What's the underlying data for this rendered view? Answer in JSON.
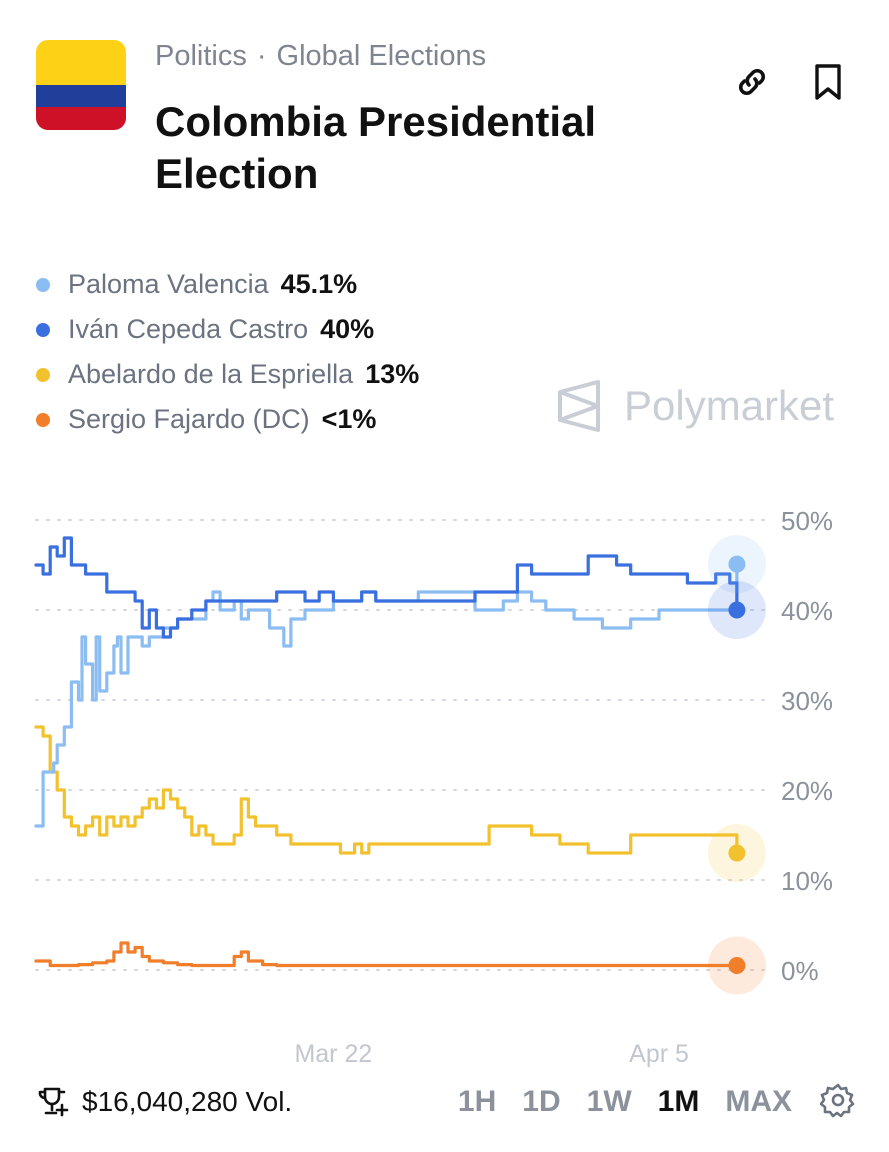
{
  "header": {
    "category": "Politics",
    "subcategory": "Global Elections",
    "separator": "·",
    "title": "Colombia Presidential Election",
    "flag_colors": [
      "#FCD116",
      "#1F3F9A",
      "#CE1126"
    ]
  },
  "brand": "Polymarket",
  "volume": "$16,040,280 Vol.",
  "ranges": [
    "1H",
    "1D",
    "1W",
    "1M",
    "MAX"
  ],
  "active_range": "1M",
  "chart_data": {
    "type": "line",
    "title": "",
    "xlabel": "",
    "ylabel": "",
    "ylim": [
      0,
      50
    ],
    "yticks": [
      0,
      10,
      20,
      30,
      40,
      50
    ],
    "ytick_labels": [
      "0%",
      "10%",
      "20%",
      "30%",
      "40%",
      "50%"
    ],
    "xticks": [
      {
        "label": "Mar 22",
        "t": 0.42
      },
      {
        "label": "Apr 5",
        "t": 0.88
      }
    ],
    "grid": true,
    "series": [
      {
        "name": "Paloma Valencia",
        "label": "45.1%",
        "color": "#8BBDF2",
        "final": 45.1,
        "points": [
          [
            0,
            16
          ],
          [
            0.01,
            22
          ],
          [
            0.02,
            22
          ],
          [
            0.025,
            23
          ],
          [
            0.03,
            25
          ],
          [
            0.04,
            27
          ],
          [
            0.05,
            32
          ],
          [
            0.06,
            30
          ],
          [
            0.065,
            37
          ],
          [
            0.07,
            34
          ],
          [
            0.08,
            30
          ],
          [
            0.085,
            37
          ],
          [
            0.09,
            31
          ],
          [
            0.1,
            33
          ],
          [
            0.11,
            36
          ],
          [
            0.115,
            37
          ],
          [
            0.12,
            33
          ],
          [
            0.13,
            37
          ],
          [
            0.14,
            37
          ],
          [
            0.15,
            36
          ],
          [
            0.16,
            37
          ],
          [
            0.17,
            37
          ],
          [
            0.18,
            38
          ],
          [
            0.2,
            39
          ],
          [
            0.22,
            39
          ],
          [
            0.24,
            41
          ],
          [
            0.25,
            42
          ],
          [
            0.26,
            40
          ],
          [
            0.28,
            41
          ],
          [
            0.29,
            39
          ],
          [
            0.3,
            40
          ],
          [
            0.33,
            38
          ],
          [
            0.35,
            36
          ],
          [
            0.36,
            39
          ],
          [
            0.38,
            40
          ],
          [
            0.4,
            40
          ],
          [
            0.42,
            41
          ],
          [
            0.44,
            41
          ],
          [
            0.46,
            42
          ],
          [
            0.48,
            41
          ],
          [
            0.5,
            41
          ],
          [
            0.52,
            41
          ],
          [
            0.54,
            42
          ],
          [
            0.56,
            42
          ],
          [
            0.58,
            42
          ],
          [
            0.6,
            42
          ],
          [
            0.62,
            40
          ],
          [
            0.64,
            40
          ],
          [
            0.66,
            41
          ],
          [
            0.68,
            42
          ],
          [
            0.7,
            41
          ],
          [
            0.72,
            40
          ],
          [
            0.74,
            40
          ],
          [
            0.76,
            39
          ],
          [
            0.78,
            39
          ],
          [
            0.8,
            38
          ],
          [
            0.82,
            38
          ],
          [
            0.84,
            39
          ],
          [
            0.86,
            39
          ],
          [
            0.88,
            40
          ],
          [
            0.9,
            40
          ],
          [
            0.92,
            40
          ],
          [
            0.94,
            40
          ],
          [
            0.96,
            40
          ],
          [
            0.98,
            40
          ],
          [
            0.99,
            45.1
          ]
        ]
      },
      {
        "name": "Iván Cepeda Castro",
        "label": "40%",
        "color": "#3A6FE0",
        "final": 40,
        "points": [
          [
            0,
            45
          ],
          [
            0.01,
            44
          ],
          [
            0.02,
            47
          ],
          [
            0.03,
            46
          ],
          [
            0.04,
            48
          ],
          [
            0.05,
            45
          ],
          [
            0.06,
            45
          ],
          [
            0.07,
            44
          ],
          [
            0.08,
            44
          ],
          [
            0.09,
            44
          ],
          [
            0.1,
            42
          ],
          [
            0.12,
            42
          ],
          [
            0.14,
            41
          ],
          [
            0.15,
            38
          ],
          [
            0.16,
            40
          ],
          [
            0.17,
            38
          ],
          [
            0.18,
            37
          ],
          [
            0.19,
            38
          ],
          [
            0.2,
            39
          ],
          [
            0.22,
            40
          ],
          [
            0.24,
            41
          ],
          [
            0.26,
            41
          ],
          [
            0.28,
            41
          ],
          [
            0.3,
            41
          ],
          [
            0.32,
            41
          ],
          [
            0.34,
            42
          ],
          [
            0.36,
            42
          ],
          [
            0.38,
            41
          ],
          [
            0.4,
            42
          ],
          [
            0.42,
            41
          ],
          [
            0.44,
            41
          ],
          [
            0.46,
            42
          ],
          [
            0.48,
            41
          ],
          [
            0.5,
            41
          ],
          [
            0.52,
            41
          ],
          [
            0.54,
            41
          ],
          [
            0.56,
            41
          ],
          [
            0.58,
            41
          ],
          [
            0.6,
            41
          ],
          [
            0.62,
            42
          ],
          [
            0.64,
            42
          ],
          [
            0.66,
            42
          ],
          [
            0.68,
            45
          ],
          [
            0.7,
            44
          ],
          [
            0.72,
            44
          ],
          [
            0.74,
            44
          ],
          [
            0.76,
            44
          ],
          [
            0.78,
            46
          ],
          [
            0.8,
            46
          ],
          [
            0.82,
            45
          ],
          [
            0.84,
            44
          ],
          [
            0.86,
            44
          ],
          [
            0.88,
            44
          ],
          [
            0.9,
            44
          ],
          [
            0.92,
            43
          ],
          [
            0.94,
            43
          ],
          [
            0.96,
            44
          ],
          [
            0.98,
            43
          ],
          [
            0.99,
            40
          ]
        ]
      },
      {
        "name": "Abelardo de la Espriella",
        "label": "13%",
        "color": "#F2C12E",
        "final": 13,
        "points": [
          [
            0,
            27
          ],
          [
            0.01,
            26
          ],
          [
            0.02,
            22
          ],
          [
            0.03,
            20
          ],
          [
            0.04,
            17
          ],
          [
            0.05,
            16
          ],
          [
            0.06,
            15
          ],
          [
            0.07,
            16
          ],
          [
            0.08,
            17
          ],
          [
            0.09,
            15
          ],
          [
            0.1,
            17
          ],
          [
            0.11,
            16
          ],
          [
            0.12,
            17
          ],
          [
            0.13,
            16
          ],
          [
            0.14,
            17
          ],
          [
            0.15,
            18
          ],
          [
            0.16,
            19
          ],
          [
            0.17,
            18
          ],
          [
            0.18,
            20
          ],
          [
            0.19,
            19
          ],
          [
            0.2,
            18
          ],
          [
            0.21,
            17
          ],
          [
            0.22,
            15
          ],
          [
            0.23,
            16
          ],
          [
            0.24,
            15
          ],
          [
            0.25,
            14
          ],
          [
            0.26,
            14
          ],
          [
            0.27,
            14
          ],
          [
            0.28,
            15
          ],
          [
            0.29,
            19
          ],
          [
            0.3,
            17
          ],
          [
            0.31,
            16
          ],
          [
            0.32,
            16
          ],
          [
            0.33,
            16
          ],
          [
            0.34,
            15
          ],
          [
            0.35,
            15
          ],
          [
            0.36,
            14
          ],
          [
            0.37,
            14
          ],
          [
            0.38,
            14
          ],
          [
            0.39,
            14
          ],
          [
            0.4,
            14
          ],
          [
            0.41,
            14
          ],
          [
            0.42,
            14
          ],
          [
            0.43,
            13
          ],
          [
            0.44,
            13
          ],
          [
            0.45,
            14
          ],
          [
            0.46,
            13
          ],
          [
            0.47,
            14
          ],
          [
            0.48,
            14
          ],
          [
            0.5,
            14
          ],
          [
            0.52,
            14
          ],
          [
            0.54,
            14
          ],
          [
            0.56,
            14
          ],
          [
            0.58,
            14
          ],
          [
            0.6,
            14
          ],
          [
            0.62,
            14
          ],
          [
            0.64,
            16
          ],
          [
            0.66,
            16
          ],
          [
            0.68,
            16
          ],
          [
            0.7,
            15
          ],
          [
            0.72,
            15
          ],
          [
            0.74,
            14
          ],
          [
            0.76,
            14
          ],
          [
            0.78,
            13
          ],
          [
            0.8,
            13
          ],
          [
            0.82,
            13
          ],
          [
            0.84,
            15
          ],
          [
            0.86,
            15
          ],
          [
            0.88,
            15
          ],
          [
            0.9,
            15
          ],
          [
            0.92,
            15
          ],
          [
            0.94,
            15
          ],
          [
            0.96,
            15
          ],
          [
            0.98,
            15
          ],
          [
            0.99,
            13
          ]
        ]
      },
      {
        "name": "Sergio Fajardo (DC)",
        "label": "<1%",
        "color": "#F07E2A",
        "final": 0.5,
        "points": [
          [
            0,
            1
          ],
          [
            0.02,
            0.5
          ],
          [
            0.04,
            0.5
          ],
          [
            0.06,
            0.6
          ],
          [
            0.08,
            0.8
          ],
          [
            0.1,
            1
          ],
          [
            0.11,
            2
          ],
          [
            0.12,
            3
          ],
          [
            0.13,
            2
          ],
          [
            0.14,
            2.5
          ],
          [
            0.15,
            1.5
          ],
          [
            0.16,
            1
          ],
          [
            0.18,
            0.8
          ],
          [
            0.2,
            0.6
          ],
          [
            0.22,
            0.5
          ],
          [
            0.25,
            0.5
          ],
          [
            0.28,
            1.5
          ],
          [
            0.29,
            2
          ],
          [
            0.3,
            1
          ],
          [
            0.32,
            0.6
          ],
          [
            0.34,
            0.5
          ],
          [
            0.4,
            0.5
          ],
          [
            0.46,
            0.5
          ],
          [
            0.5,
            0.5
          ],
          [
            0.54,
            0.5
          ],
          [
            0.58,
            0.5
          ],
          [
            0.62,
            0.5
          ],
          [
            0.66,
            0.5
          ],
          [
            0.7,
            0.5
          ],
          [
            0.74,
            0.5
          ],
          [
            0.78,
            0.5
          ],
          [
            0.82,
            0.5
          ],
          [
            0.86,
            0.5
          ],
          [
            0.9,
            0.5
          ],
          [
            0.94,
            0.5
          ],
          [
            0.98,
            0.5
          ],
          [
            0.99,
            0.5
          ]
        ]
      }
    ]
  }
}
